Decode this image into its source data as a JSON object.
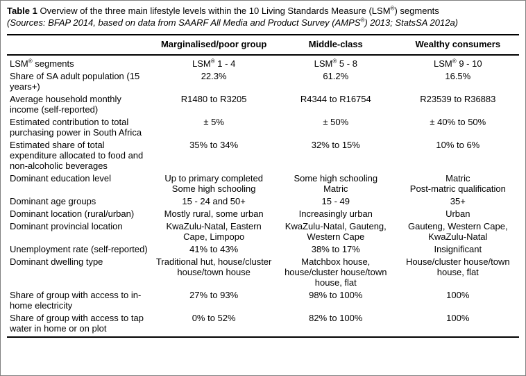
{
  "title": {
    "label": "Table 1",
    "text": "Overview of the three main lifestyle levels within the 10 Living Standards Measure (LSM®) segments"
  },
  "sources": "(Sources: BFAP 2014, based on data from SAARF All Media and Product Survey (AMPS®) 2013; StatsSA 2012a)",
  "table": {
    "columns": [
      "",
      "Marginalised/poor group",
      "Middle-class",
      "Wealthy consumers"
    ],
    "rows": [
      {
        "label": "LSM® segments",
        "values": [
          "LSM® 1 - 4",
          "LSM® 5 - 8",
          "LSM® 9 - 10"
        ]
      },
      {
        "label": "Share of SA adult population (15 years+)",
        "values": [
          "22.3%",
          "61.2%",
          "16.5%"
        ]
      },
      {
        "label": "Average household monthly income (self-reported)",
        "values": [
          "R1480 to R3205",
          "R4344 to R16754",
          "R23539 to R36883"
        ]
      },
      {
        "label": "Estimated contribution to total purchasing power in South Africa",
        "values": [
          "± 5%",
          "± 50%",
          "± 40% to 50%"
        ]
      },
      {
        "label": "Estimated share of total expenditure allocated to food and non-alcoholic beverages",
        "values": [
          "35% to 34%",
          "32% to 15%",
          "10% to 6%"
        ]
      },
      {
        "label": "Dominant education level",
        "values": [
          "Up to primary completed\nSome high schooling",
          "Some high schooling\nMatric",
          "Matric\nPost-matric qualification"
        ]
      },
      {
        "label": "Dominant age groups",
        "values": [
          "15 - 24 and 50+",
          "15 - 49",
          "35+"
        ]
      },
      {
        "label": "Dominant location (rural/urban)",
        "values": [
          "Mostly rural, some urban",
          "Increasingly urban",
          "Urban"
        ]
      },
      {
        "label": "Dominant provincial location",
        "values": [
          "KwaZulu-Natal, Eastern Cape, Limpopo",
          "KwaZulu-Natal, Gauteng, Western Cape",
          "Gauteng, Western Cape, KwaZulu-Natal"
        ]
      },
      {
        "label": "Unemployment rate (self-reported)",
        "values": [
          "41% to 43%",
          "38% to 17%",
          "Insignificant"
        ]
      },
      {
        "label": "Dominant dwelling type",
        "values": [
          "Traditional hut, house/cluster house/town house",
          "Matchbox house, house/cluster house/town house, flat",
          "House/cluster house/town house, flat"
        ]
      },
      {
        "label": "Share of group with access to in-home electricity",
        "values": [
          "27% to 93%",
          "98% to 100%",
          "100%"
        ]
      },
      {
        "label": "Share of group with access to tap water in home or on plot",
        "values": [
          "0% to 52%",
          "82% to 100%",
          "100%"
        ]
      }
    ]
  }
}
